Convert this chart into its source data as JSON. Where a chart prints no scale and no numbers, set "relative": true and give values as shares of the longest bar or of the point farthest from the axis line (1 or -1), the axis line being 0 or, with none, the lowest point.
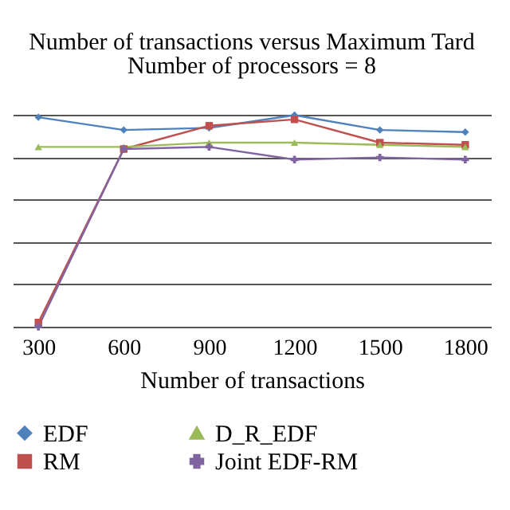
{
  "chart_data": {
    "type": "line",
    "title": "Number of transactions versus Maximum Tard",
    "subtitle": "Number of processors = 8",
    "xlabel": "Number of transactions",
    "categories": [
      "300",
      "600",
      "900",
      "1200",
      "1500",
      "1800"
    ],
    "relative": true,
    "grid": "y",
    "legend": "bottom",
    "series": [
      {
        "name": "EDF",
        "color": "#4f81bd",
        "marker": "diamond",
        "values": [
          0.99,
          0.93,
          0.94,
          1,
          0.93,
          0.92
        ]
      },
      {
        "name": "RM",
        "color": "#c0504d",
        "marker": "square",
        "values": [
          0.02,
          0.84,
          0.95,
          0.98,
          0.87,
          0.86
        ]
      },
      {
        "name": "D_R_EDF",
        "color": "#9bbb59",
        "marker": "triangle",
        "values": [
          0.85,
          0.85,
          0.87,
          0.87,
          0.86,
          0.85
        ]
      },
      {
        "name": "Joint EDF-RM",
        "color": "#8064a2",
        "marker": "cross",
        "values": [
          0,
          0.84,
          0.85,
          0.79,
          0.8,
          0.79
        ]
      }
    ]
  }
}
